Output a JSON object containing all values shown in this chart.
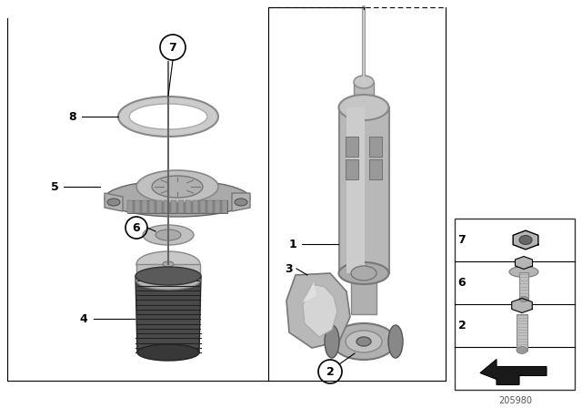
{
  "bg_color": "#ffffff",
  "fig_width": 6.4,
  "fig_height": 4.48,
  "dpi": 100,
  "part_number": "205980",
  "box_color": "#aaaaaa",
  "part_gray": "#b8b8b8",
  "part_gray_dark": "#909090",
  "part_gray_light": "#d0d0d0",
  "boot_dark": "#5a5a5a",
  "boot_mid": "#888888"
}
